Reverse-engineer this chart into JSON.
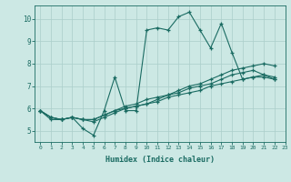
{
  "xlabel": "Humidex (Indice chaleur)",
  "background_color": "#cce8e4",
  "grid_color": "#aaceca",
  "line_color": "#1a6b62",
  "xlim": [
    -0.5,
    23
  ],
  "ylim": [
    4.5,
    10.6
  ],
  "yticks": [
    5,
    6,
    7,
    8,
    9,
    10
  ],
  "xticks": [
    0,
    1,
    2,
    3,
    4,
    5,
    6,
    7,
    8,
    9,
    10,
    11,
    12,
    13,
    14,
    15,
    16,
    17,
    18,
    19,
    20,
    21,
    22,
    23
  ],
  "series": [
    [
      5.9,
      5.5,
      5.5,
      5.6,
      5.1,
      4.8,
      5.9,
      7.4,
      5.9,
      5.9,
      9.5,
      9.6,
      9.5,
      10.1,
      10.3,
      9.5,
      8.7,
      9.8,
      8.5,
      7.3,
      7.4,
      7.4,
      7.3
    ],
    [
      5.9,
      5.6,
      5.5,
      5.6,
      5.5,
      5.4,
      5.6,
      5.8,
      6.0,
      6.1,
      6.2,
      6.4,
      6.6,
      6.8,
      7.0,
      7.1,
      7.3,
      7.5,
      7.7,
      7.8,
      7.9,
      8.0,
      7.9
    ],
    [
      5.9,
      5.6,
      5.5,
      5.6,
      5.5,
      5.5,
      5.7,
      5.9,
      6.1,
      6.2,
      6.4,
      6.5,
      6.6,
      6.7,
      6.9,
      7.0,
      7.1,
      7.3,
      7.5,
      7.6,
      7.7,
      7.5,
      7.4
    ],
    [
      5.9,
      5.6,
      5.5,
      5.6,
      5.5,
      5.5,
      5.7,
      5.9,
      6.0,
      6.1,
      6.2,
      6.3,
      6.5,
      6.6,
      6.7,
      6.8,
      7.0,
      7.1,
      7.2,
      7.3,
      7.4,
      7.5,
      7.3
    ]
  ]
}
